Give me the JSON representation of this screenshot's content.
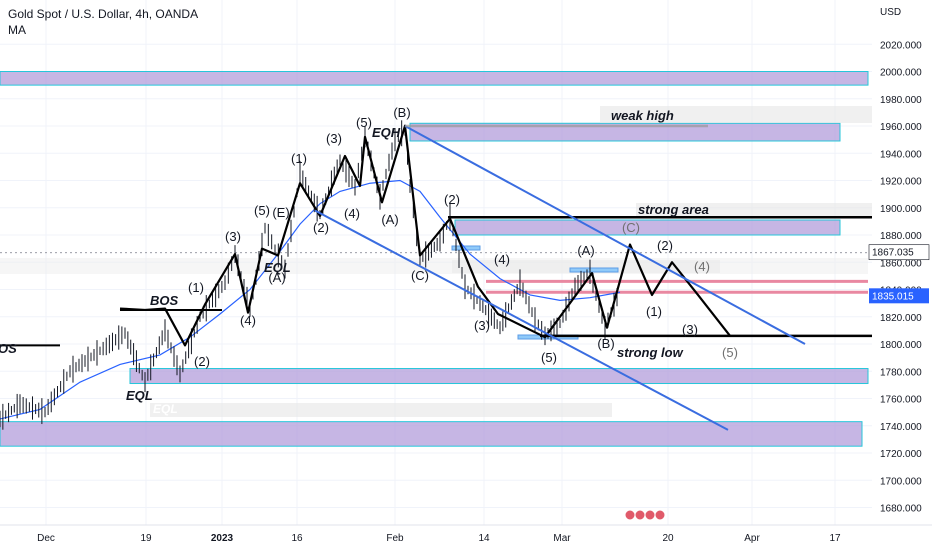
{
  "header": {
    "title": "Gold Spot / U.S. Dollar, 4h, OANDA",
    "indicator": "MA"
  },
  "chart_data": {
    "type": "line",
    "title": "Gold Spot / U.S. Dollar, 4h, OANDA",
    "currency": "USD",
    "ylim": [
      1670,
      2040
    ],
    "y_ticks": [
      1680,
      1700,
      1720,
      1740,
      1760,
      1780,
      1800,
      1820,
      1840,
      1860,
      1880,
      1900,
      1920,
      1940,
      1960,
      1980,
      2000,
      2020
    ],
    "y_tick_labels": [
      "1680.000",
      "1700.000",
      "1720.000",
      "1740.000",
      "1760.000",
      "1780.000",
      "1800.000",
      "1820.000",
      "1840.000",
      "1860.000",
      "1880.000",
      "1900.000",
      "1920.000",
      "1940.000",
      "1960.000",
      "1980.000",
      "2000.000",
      "2020.000"
    ],
    "x_labels": [
      "Dec",
      "19",
      "2023",
      "16",
      "Feb",
      "14",
      "Mar",
      "20",
      "Apr",
      "17"
    ],
    "grid": true,
    "last_price": "1835.015",
    "crosshair_price": "1867.035",
    "series": [
      {
        "name": "MA",
        "color": "#2962ff",
        "points": [
          [
            0,
            1745
          ],
          [
            40,
            1752
          ],
          [
            80,
            1772
          ],
          [
            120,
            1785
          ],
          [
            160,
            1792
          ],
          [
            190,
            1805
          ],
          [
            220,
            1822
          ],
          [
            250,
            1840
          ],
          [
            280,
            1868
          ],
          [
            300,
            1888
          ],
          [
            320,
            1903
          ],
          [
            340,
            1912
          ],
          [
            370,
            1918
          ],
          [
            400,
            1920
          ],
          [
            420,
            1912
          ],
          [
            440,
            1893
          ],
          [
            470,
            1866
          ],
          [
            500,
            1848
          ],
          [
            530,
            1836
          ],
          [
            560,
            1832
          ],
          [
            590,
            1834
          ],
          [
            620,
            1838
          ]
        ]
      }
    ],
    "price_path": [
      [
        0,
        1745
      ],
      [
        20,
        1756
      ],
      [
        45,
        1750
      ],
      [
        70,
        1780
      ],
      [
        100,
        1795
      ],
      [
        125,
        1808
      ],
      [
        145,
        1772
      ],
      [
        165,
        1810
      ],
      [
        180,
        1778
      ],
      [
        200,
        1820
      ],
      [
        225,
        1845
      ],
      [
        235,
        1866
      ],
      [
        250,
        1825
      ],
      [
        265,
        1885
      ],
      [
        275,
        1870
      ],
      [
        285,
        1855
      ],
      [
        300,
        1925
      ],
      [
        320,
        1895
      ],
      [
        340,
        1935
      ],
      [
        355,
        1915
      ],
      [
        365,
        1952
      ],
      [
        380,
        1908
      ],
      [
        395,
        1950
      ],
      [
        405,
        1957
      ],
      [
        410,
        1916
      ],
      [
        420,
        1862
      ],
      [
        440,
        1875
      ],
      [
        450,
        1893
      ],
      [
        465,
        1842
      ],
      [
        480,
        1830
      ],
      [
        500,
        1812
      ],
      [
        520,
        1845
      ],
      [
        535,
        1818
      ],
      [
        545,
        1806
      ],
      [
        560,
        1815
      ],
      [
        575,
        1842
      ],
      [
        590,
        1853
      ],
      [
        605,
        1812
      ],
      [
        620,
        1840
      ]
    ],
    "wave_path": [
      [
        120,
        1826
      ],
      [
        145,
        1825
      ],
      [
        165,
        1826
      ],
      [
        185,
        1799
      ],
      [
        205,
        1829
      ],
      [
        235,
        1866
      ],
      [
        248,
        1823
      ],
      [
        262,
        1870
      ],
      [
        278,
        1865
      ],
      [
        300,
        1918
      ],
      [
        320,
        1894
      ],
      [
        345,
        1938
      ],
      [
        360,
        1916
      ],
      [
        365,
        1952
      ],
      [
        382,
        1904
      ],
      [
        405,
        1960
      ],
      [
        420,
        1865
      ],
      [
        450,
        1892
      ],
      [
        478,
        1842
      ],
      [
        498,
        1822
      ],
      [
        545,
        1805
      ],
      [
        582,
        1842
      ],
      [
        592,
        1852
      ],
      [
        607,
        1812
      ],
      [
        630,
        1873
      ],
      [
        652,
        1836
      ],
      [
        672,
        1860
      ],
      [
        698,
        1836
      ],
      [
        730,
        1806
      ]
    ],
    "trend_lines": [
      {
        "color": "#3a6de0",
        "points": [
          [
            405,
            1960
          ],
          [
            805,
            1800
          ]
        ]
      },
      {
        "color": "#3a6de0",
        "points": [
          [
            315,
            1898
          ],
          [
            728,
            1737
          ]
        ]
      },
      {
        "color": "#999999",
        "points": [
          [
            405,
            1960
          ],
          [
            708,
            1960
          ]
        ]
      }
    ],
    "levels": [
      {
        "label": "BOS",
        "y": 1825
      },
      {
        "label": "strong low",
        "y": 1806
      },
      {
        "label": "strong area",
        "y": 1893
      }
    ],
    "zones": [
      {
        "y_top": 2000,
        "y_bottom": 1990,
        "color": "#b39ddb"
      },
      {
        "y_top": 1962,
        "y_bottom": 1949,
        "color": "#b39ddb"
      },
      {
        "y_top": 1891,
        "y_bottom": 1880,
        "color": "#b39ddb"
      },
      {
        "y_top": 1782,
        "y_bottom": 1771,
        "color": "#b39ddb"
      },
      {
        "y_top": 1743,
        "y_bottom": 1725,
        "color": "#b39ddb"
      }
    ],
    "annotations": [
      "(1)",
      "(2)",
      "(3)",
      "(4)",
      "(5)",
      "(E)",
      "(A)",
      "(B)",
      "(C)",
      "EQH",
      "EQL",
      "EQL",
      "BOS",
      "OS",
      "weak high",
      "strong area",
      "strong low"
    ]
  },
  "labels": {
    "bos": "BOS",
    "os": "OS",
    "eqh": "EQH",
    "eql1": "EQL",
    "eql2": "EQL",
    "weak_high": "weak high",
    "strong_area": "strong area",
    "strong_low": "strong low",
    "w1": "(1)",
    "w2": "(2)",
    "w3": "(3)",
    "w4": "(4)",
    "w5": "(5)",
    "wE": "(E)",
    "wA": "(A)",
    "wB": "(B)",
    "wC": "(C)"
  },
  "colors": {
    "price": "#131722",
    "ma": "#2962ff",
    "zone_fill": "#b39ddb",
    "zone_stroke": "#26c6da",
    "trend": "#3a6de0",
    "pink_line": "#e57390",
    "last_price_bg": "#2962ff",
    "crosshair_bg": "#ffffff"
  }
}
